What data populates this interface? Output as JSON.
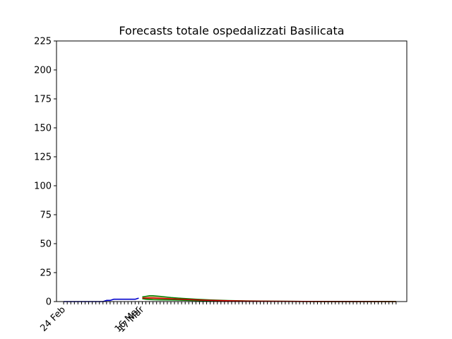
{
  "chart_data": {
    "type": "line",
    "title": "Forecasts totale ospedalizzati Basilicata",
    "xlabel": "",
    "ylabel": "",
    "ylim": [
      0,
      225
    ],
    "yticks": [
      0,
      25,
      50,
      75,
      100,
      125,
      150,
      175,
      200,
      225
    ],
    "xlim": [
      "2020-02-22",
      "2020-05-30"
    ],
    "xtick_labels": [
      {
        "date": "2020-02-24",
        "label": "24 Feb"
      },
      {
        "date": "2020-03-16",
        "label": "16 Mar"
      },
      {
        "date": "2020-03-17",
        "label": "17 Mar"
      }
    ],
    "minor_ticks": {
      "start": "2020-02-24",
      "end": "2020-05-27",
      "step_days": 1
    },
    "grid": false,
    "series": [
      {
        "kind": "observed",
        "color": "#0000cc",
        "points": [
          [
            "2020-02-24",
            0
          ],
          [
            "2020-02-25",
            0
          ],
          [
            "2020-02-26",
            0
          ],
          [
            "2020-02-27",
            0
          ],
          [
            "2020-02-28",
            0
          ],
          [
            "2020-02-29",
            0
          ],
          [
            "2020-03-01",
            0
          ],
          [
            "2020-03-02",
            0
          ],
          [
            "2020-03-03",
            0
          ],
          [
            "2020-03-04",
            0
          ],
          [
            "2020-03-05",
            0
          ],
          [
            "2020-03-06",
            0
          ],
          [
            "2020-03-07",
            1
          ],
          [
            "2020-03-08",
            1
          ],
          [
            "2020-03-09",
            2
          ],
          [
            "2020-03-10",
            2
          ],
          [
            "2020-03-11",
            2
          ],
          [
            "2020-03-12",
            2
          ],
          [
            "2020-03-13",
            2
          ],
          [
            "2020-03-14",
            2
          ],
          [
            "2020-03-15",
            2
          ],
          [
            "2020-03-16",
            3
          ]
        ]
      },
      {
        "kind": "forecast-upper",
        "color": "#008000",
        "points": [
          [
            "2020-03-17",
            4
          ],
          [
            "2020-03-18",
            4.5
          ],
          [
            "2020-03-19",
            5
          ],
          [
            "2020-03-20",
            5
          ],
          [
            "2020-03-22",
            4.5
          ],
          [
            "2020-03-25",
            3.5
          ],
          [
            "2020-03-28",
            2.8
          ],
          [
            "2020-04-01",
            2
          ],
          [
            "2020-04-05",
            1.4
          ],
          [
            "2020-04-10",
            0.9
          ],
          [
            "2020-04-15",
            0.6
          ],
          [
            "2020-04-22",
            0.3
          ],
          [
            "2020-05-01",
            0.15
          ],
          [
            "2020-05-10",
            0.05
          ],
          [
            "2020-05-27",
            0
          ]
        ]
      },
      {
        "kind": "forecast-lower",
        "color": "#008000",
        "points": [
          [
            "2020-03-17",
            2.5
          ],
          [
            "2020-03-18",
            2
          ],
          [
            "2020-03-19",
            1.8
          ],
          [
            "2020-03-20",
            1.6
          ],
          [
            "2020-03-22",
            1.5
          ],
          [
            "2020-03-25",
            1.4
          ],
          [
            "2020-03-28",
            1.2
          ],
          [
            "2020-04-01",
            0.9
          ],
          [
            "2020-04-05",
            0.7
          ],
          [
            "2020-04-10",
            0.5
          ],
          [
            "2020-04-15",
            0.3
          ],
          [
            "2020-04-22",
            0.2
          ],
          [
            "2020-05-01",
            0.1
          ],
          [
            "2020-05-10",
            0.03
          ],
          [
            "2020-05-27",
            0
          ]
        ]
      },
      {
        "kind": "forecast-central",
        "color": "#cc0000",
        "points": [
          [
            "2020-03-17",
            3
          ],
          [
            "2020-03-18",
            3
          ],
          [
            "2020-03-19",
            3
          ],
          [
            "2020-03-20",
            3
          ],
          [
            "2020-03-22",
            2.8
          ],
          [
            "2020-03-25",
            2.4
          ],
          [
            "2020-03-28",
            2
          ],
          [
            "2020-04-01",
            1.5
          ],
          [
            "2020-04-05",
            1
          ],
          [
            "2020-04-10",
            0.7
          ],
          [
            "2020-04-15",
            0.4
          ],
          [
            "2020-04-22",
            0.25
          ],
          [
            "2020-05-01",
            0.12
          ],
          [
            "2020-05-10",
            0.04
          ],
          [
            "2020-05-27",
            0
          ]
        ]
      }
    ],
    "forecast_band_fill": "#d9822b"
  }
}
